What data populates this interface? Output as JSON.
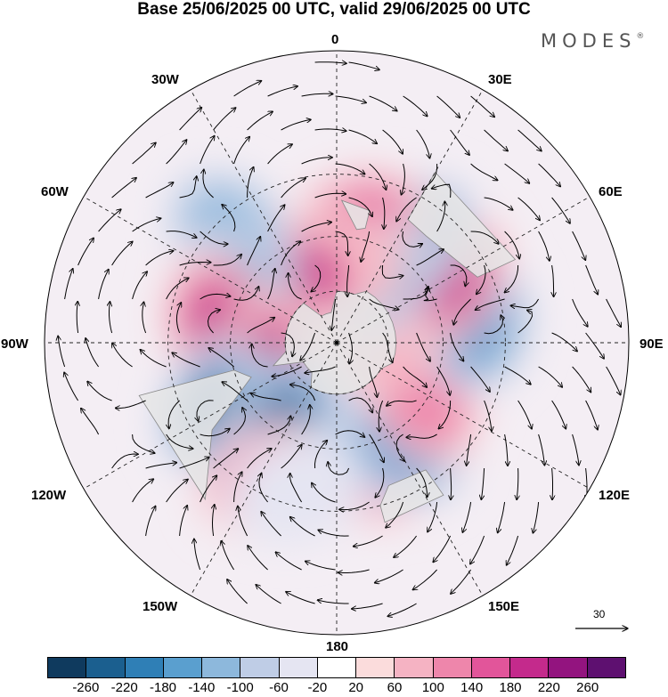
{
  "title": "Base 25/06/2025 00 UTC, valid 29/06/2025 00 UTC",
  "brand": "MODES",
  "brand_mark": "®",
  "longitude_labels": {
    "0": "0",
    "30E": "30E",
    "60E": "60E",
    "90E": "90E",
    "120E": "120E",
    "150E": "150E",
    "180": "180",
    "150W": "150W",
    "120W": "120W",
    "90W": "90W",
    "60W": "60W",
    "30W": "30W"
  },
  "vector_reference": "30",
  "colorbar": {
    "ticks": [
      "-260",
      "-220",
      "-180",
      "-140",
      "-100",
      "-60",
      "-20",
      "20",
      "60",
      "100",
      "140",
      "180",
      "220",
      "260"
    ],
    "colors": [
      "#0f3a5e",
      "#1b5f8f",
      "#2f7fb6",
      "#5a9fcf",
      "#8db8dc",
      "#bfcde6",
      "#e5e5f2",
      "#ffffff",
      "#fbdcdc",
      "#f5b3c3",
      "#ee86ab",
      "#e2559a",
      "#c42a8c",
      "#93147f",
      "#5e1070"
    ]
  },
  "map": {
    "projection": "south polar stereographic",
    "land_color": "#e6e6e6",
    "anomaly_centers": [
      {
        "lon": 0,
        "lat": -45,
        "value": 240
      },
      {
        "lon": 15,
        "lat": -42,
        "value": 120
      },
      {
        "lon": 32,
        "lat": -45,
        "value": -160
      },
      {
        "lon": 58,
        "lat": -52,
        "value": 100
      },
      {
        "lon": 98,
        "lat": -38,
        "value": -150
      },
      {
        "lon": 110,
        "lat": -70,
        "value": 60
      },
      {
        "lon": 120,
        "lat": -42,
        "value": 190
      },
      {
        "lon": 146,
        "lat": -42,
        "value": -220
      },
      {
        "lon": 168,
        "lat": -45,
        "value": 140
      },
      {
        "lon": 150,
        "lat": -62,
        "value": -150
      },
      {
        "lon": 180,
        "lat": -60,
        "value": 60
      },
      {
        "lon": -155,
        "lat": -60,
        "value": 200
      },
      {
        "lon": -136,
        "lat": -35,
        "value": -110
      },
      {
        "lon": -118,
        "lat": -50,
        "value": -150
      },
      {
        "lon": -100,
        "lat": -45,
        "value": 190
      },
      {
        "lon": -75,
        "lat": -62,
        "value": 250
      },
      {
        "lon": -62,
        "lat": -40,
        "value": -240
      },
      {
        "lon": -36,
        "lat": -55,
        "value": -230
      },
      {
        "lon": -27,
        "lat": -35,
        "value": 100
      },
      {
        "lon": -15,
        "lat": -35,
        "value": -40
      }
    ]
  }
}
